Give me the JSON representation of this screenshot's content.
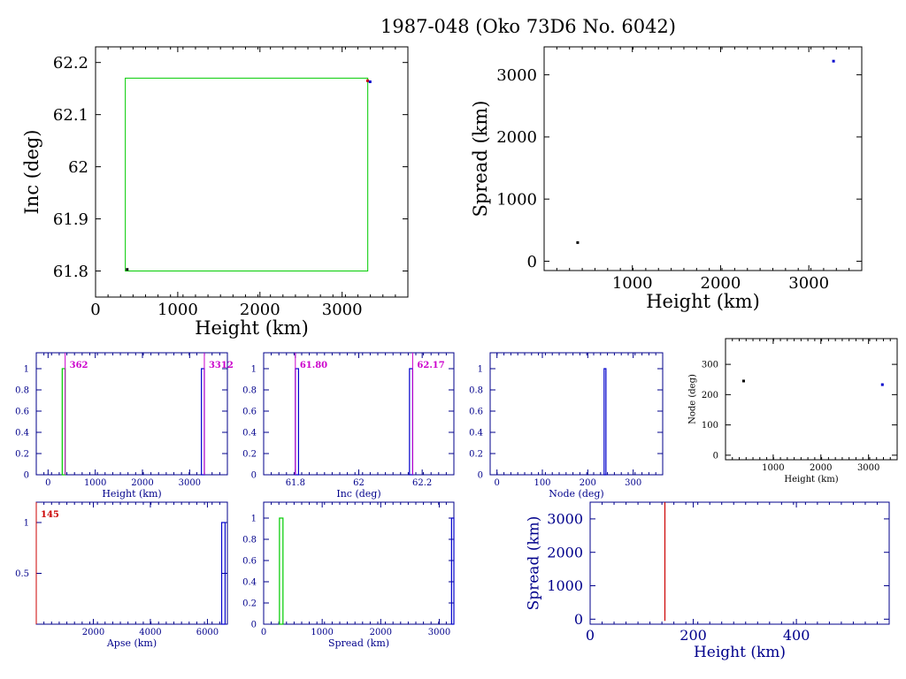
{
  "title": "1987-048 (Oko 73D6 No. 6042)",
  "colors": {
    "axis_black": "#000000",
    "axis_blue": "#00008b",
    "green": "#00cc00",
    "red": "#cc0000",
    "magenta": "#cc00cc",
    "blue": "#0000cc"
  },
  "chart_data": [
    {
      "id": "inc-vs-height",
      "type": "scatter",
      "xlabel": "Height (km)",
      "ylabel": "Inc (deg)",
      "xlim": [
        0,
        3800
      ],
      "ylim": [
        61.75,
        62.23
      ],
      "xticks": [
        0,
        1000,
        2000,
        3000
      ],
      "yticks": [
        61.8,
        61.9,
        62,
        62.1,
        62.2
      ],
      "ytick_labels": [
        "61.8",
        "61.9",
        "62",
        "62.1",
        "62.2"
      ],
      "box": {
        "x": [
          362,
          3312
        ],
        "y": [
          61.8,
          62.17
        ],
        "color": "green"
      },
      "points": [
        {
          "x": 385,
          "y": 61.803,
          "color": "black"
        },
        {
          "x": 3310,
          "y": 62.165,
          "color": "red"
        },
        {
          "x": 3340,
          "y": 62.163,
          "color": "blue"
        }
      ]
    },
    {
      "id": "spread-vs-height",
      "type": "scatter",
      "xlabel": "Height (km)",
      "ylabel": "Spread (km)",
      "xlim": [
        0,
        3600
      ],
      "ylim": [
        -150,
        3450
      ],
      "xticks": [
        1000,
        2000,
        3000
      ],
      "yticks": [
        0,
        1000,
        2000,
        3000
      ],
      "points": [
        {
          "x": 380,
          "y": 300,
          "color": "black"
        },
        {
          "x": 3280,
          "y": 3220,
          "color": "blue"
        }
      ]
    },
    {
      "id": "height-hist",
      "type": "bar",
      "xlabel": "Height (km)",
      "ylabel": "",
      "xlim": [
        -250,
        3800
      ],
      "ylim": [
        0,
        1.15
      ],
      "xticks": [
        0,
        1000,
        2000,
        3000
      ],
      "yticks": [
        0,
        0.2,
        0.4,
        0.6,
        0.8,
        1
      ],
      "ytick_labels": [
        "0",
        "0.2",
        "0.4",
        "0.6",
        "0.8",
        "1"
      ],
      "bars": [
        {
          "x0": 300,
          "x1": 362,
          "y": 1,
          "color": "green"
        },
        {
          "x0": 3250,
          "x1": 3312,
          "y": 1,
          "color": "blue"
        }
      ],
      "markers": [
        {
          "x": 362,
          "label": "362",
          "color": "magenta"
        },
        {
          "x": 3312,
          "label": "3312",
          "color": "magenta"
        }
      ]
    },
    {
      "id": "inc-hist",
      "type": "bar",
      "xlabel": "Inc (deg)",
      "ylabel": "",
      "xlim": [
        61.7,
        62.3
      ],
      "ylim": [
        0,
        1.15
      ],
      "xticks": [
        61.8,
        62,
        62.2
      ],
      "xtick_labels": [
        "61.8",
        "62",
        "62.2"
      ],
      "yticks": [
        0,
        0.2,
        0.4,
        0.6,
        0.8,
        1
      ],
      "ytick_labels": [
        "0",
        "0.2",
        "0.4",
        "0.6",
        "0.8",
        "1"
      ],
      "bars": [
        {
          "x0": 61.8,
          "x1": 61.81,
          "y": 1,
          "color": "blue"
        },
        {
          "x0": 62.16,
          "x1": 62.17,
          "y": 1,
          "color": "blue"
        }
      ],
      "markers": [
        {
          "x": 61.8,
          "label": "61.80",
          "color": "magenta"
        },
        {
          "x": 62.17,
          "label": "62.17",
          "color": "magenta"
        }
      ]
    },
    {
      "id": "node-hist",
      "type": "bar",
      "xlabel": "Node (deg)",
      "ylabel": "",
      "xlim": [
        -15,
        365
      ],
      "ylim": [
        0,
        1.15
      ],
      "xticks": [
        0,
        100,
        200,
        300
      ],
      "yticks": [
        0,
        0.2,
        0.4,
        0.6,
        0.8,
        1
      ],
      "ytick_labels": [
        "0",
        "0.2",
        "0.4",
        "0.6",
        "0.8",
        "1"
      ],
      "bars": [
        {
          "x0": 236,
          "x1": 240,
          "y": 1,
          "color": "blue"
        }
      ],
      "markers": []
    },
    {
      "id": "node-vs-height",
      "type": "scatter",
      "xlabel": "Height (km)",
      "ylabel": "Node (deg)",
      "xlim": [
        0,
        3600
      ],
      "ylim": [
        -15,
        385
      ],
      "xticks": [
        1000,
        2000,
        3000
      ],
      "yticks": [
        0,
        100,
        200,
        300
      ],
      "points": [
        {
          "x": 380,
          "y": 245,
          "color": "black"
        },
        {
          "x": 3290,
          "y": 233,
          "color": "blue"
        }
      ]
    },
    {
      "id": "apse-hist",
      "type": "bar",
      "xlabel": "Apse (km)",
      "ylabel": "",
      "xlim": [
        0,
        6700
      ],
      "ylim": [
        0,
        1.2
      ],
      "xticks": [
        2000,
        4000,
        6000
      ],
      "yticks": [
        0.5,
        1
      ],
      "ytick_labels": [
        "0.5",
        "1"
      ],
      "bars": [
        {
          "x0": 6500,
          "x1": 6620,
          "y": 1,
          "color": "blue"
        }
      ],
      "markers": [
        {
          "x": 0,
          "label": "145",
          "color": "red"
        }
      ]
    },
    {
      "id": "spread-hist",
      "type": "bar",
      "xlabel": "Spread (km)",
      "ylabel": "",
      "xlim": [
        0,
        3250
      ],
      "ylim": [
        0,
        1.15
      ],
      "xticks": [
        0,
        1000,
        2000,
        3000
      ],
      "yticks": [
        0,
        0.2,
        0.4,
        0.6,
        0.8,
        1
      ],
      "ytick_labels": [
        "0",
        "0.2",
        "0.4",
        "0.6",
        "0.8",
        "1"
      ],
      "bars": [
        {
          "x0": 270,
          "x1": 330,
          "y": 1,
          "color": "green"
        },
        {
          "x0": 3210,
          "x1": 3250,
          "y": 1,
          "color": "blue"
        }
      ],
      "markers": []
    },
    {
      "id": "spread-vs-height-small",
      "type": "line",
      "xlabel": "Height (km)",
      "ylabel": "Spread (km)",
      "xlim": [
        0,
        580
      ],
      "ylim": [
        -150,
        3500
      ],
      "xticks": [
        0,
        200,
        400
      ],
      "yticks": [
        0,
        1000,
        2000,
        3000
      ],
      "vline": {
        "x": 145,
        "y0": -50,
        "y1": 3500,
        "color": "red"
      }
    }
  ]
}
